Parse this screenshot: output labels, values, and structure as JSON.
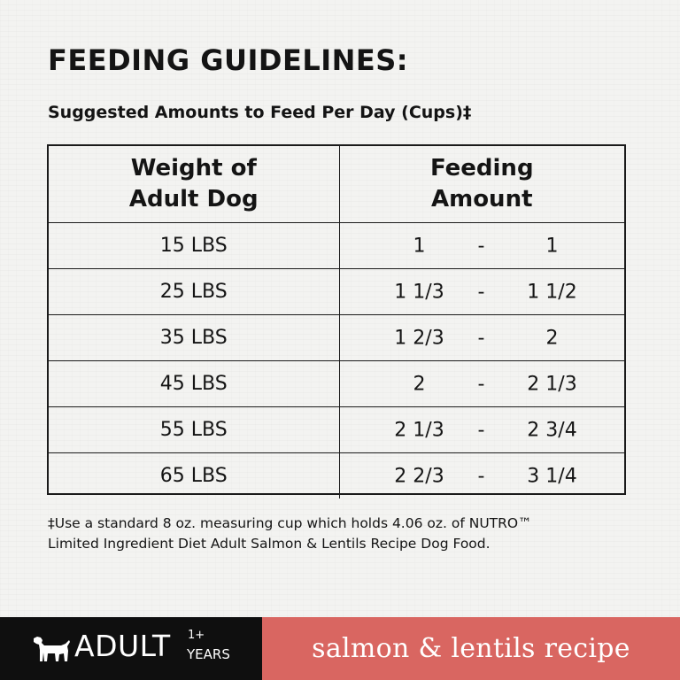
{
  "title": "FEEDING GUIDELINES:",
  "subtitle": "Suggested Amounts to Feed Per Day (Cups)‡",
  "table": {
    "headers": {
      "weight_line1": "Weight of",
      "weight_line2": "Adult Dog",
      "amount_line1": "Feeding",
      "amount_line2": "Amount"
    },
    "rows": [
      {
        "weight": "15 LBS",
        "low": "1",
        "sep": "-",
        "high": "1"
      },
      {
        "weight": "25 LBS",
        "low": "1  1/3",
        "sep": "-",
        "high": "1  1/2"
      },
      {
        "weight": "35 LBS",
        "low": "1  2/3",
        "sep": "-",
        "high": "2"
      },
      {
        "weight": "45 LBS",
        "low": "2",
        "sep": "-",
        "high": "2  1/3"
      },
      {
        "weight": "55 LBS",
        "low": "2  1/3",
        "sep": "-",
        "high": "2  3/4"
      },
      {
        "weight": "65 LBS",
        "low": "2  2/3",
        "sep": "-",
        "high": "3  1/4"
      }
    ]
  },
  "footnote": {
    "line1": "‡Use a standard 8 oz. measuring cup which holds 4.06 oz. of NUTRO™",
    "line2": "Limited Ingredient Diet Adult Salmon & Lentils Recipe Dog Food."
  },
  "footer": {
    "life_stage": "ADULT",
    "age_plus": "1+",
    "age_unit": "YEARS",
    "recipe": "salmon & lentils recipe",
    "icon": "dog-icon",
    "colors": {
      "left_bg": "#0f0f0f",
      "right_bg": "#d96661",
      "text": "#ffffff"
    }
  }
}
